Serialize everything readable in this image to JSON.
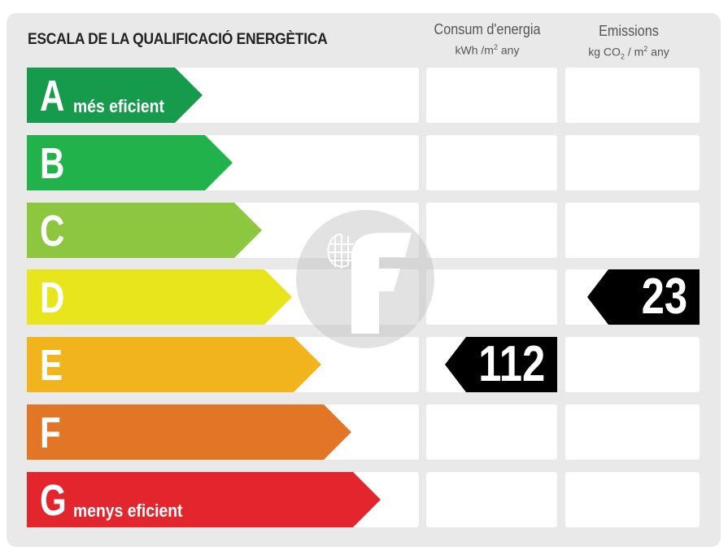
{
  "title": "ESCALA DE LA QUALIFICACIÓ ENERGÈTICA",
  "columns": {
    "energy": {
      "line1": "Consum d'energia",
      "unit_a": "kWh /m",
      "unit_sup": "2",
      "unit_b": "  any"
    },
    "emissions": {
      "line1": "Emissions",
      "unit_a": "kg CO",
      "unit_sub": "2",
      "unit_mid": "  / m",
      "unit_sup": "2",
      "unit_b": "  any"
    }
  },
  "classes": [
    {
      "letter": "A",
      "note": "més eficient",
      "color": "#169b4d"
    },
    {
      "letter": "B",
      "note": "",
      "color": "#21b24b"
    },
    {
      "letter": "C",
      "note": "",
      "color": "#8dc63f"
    },
    {
      "letter": "D",
      "note": "",
      "color": "#e8e51d"
    },
    {
      "letter": "E",
      "note": "",
      "color": "#f2b41c"
    },
    {
      "letter": "F",
      "note": "",
      "color": "#e37526"
    },
    {
      "letter": "G",
      "note": "menys eficient",
      "color": "#e3262d"
    }
  ],
  "energy_rating": {
    "class": "E",
    "value": "112"
  },
  "emissions_rating": {
    "class": "D",
    "value": "23"
  }
}
